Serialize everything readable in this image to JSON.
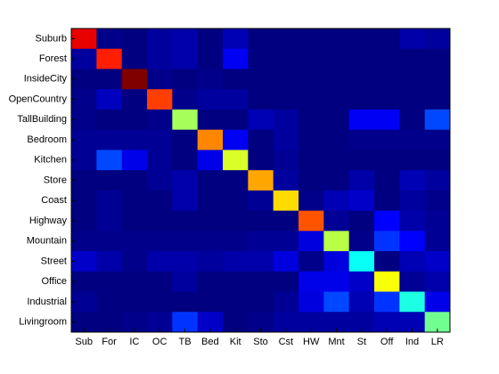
{
  "chart_data": {
    "type": "heatmap",
    "colormap": "jet",
    "x_categories": [
      "Sub",
      "For",
      "IC",
      "OC",
      "TB",
      "Bed",
      "Kit",
      "Sto",
      "Cst",
      "HW",
      "Mnt",
      "St",
      "Off",
      "Ind",
      "LR"
    ],
    "y_categories": [
      "Suburb",
      "Forest",
      "InsideCity",
      "OpenCountry",
      "TallBuilding",
      "Bedroom",
      "Kitchen",
      "Store",
      "Coast",
      "Highway",
      "Mountain",
      "Street",
      "Office",
      "Industrial",
      "Livingroom"
    ],
    "values": [
      [
        0.9,
        0.04,
        0.03,
        0.06,
        0.07,
        0.03,
        0.08,
        0.03,
        0.03,
        0.03,
        0.03,
        0.03,
        0.03,
        0.07,
        0.06
      ],
      [
        0.06,
        0.85,
        0.03,
        0.06,
        0.07,
        0.03,
        0.14,
        0.03,
        0.03,
        0.03,
        0.03,
        0.03,
        0.03,
        0.03,
        0.03
      ],
      [
        0.03,
        0.03,
        1.0,
        0.04,
        0.03,
        0.04,
        0.03,
        0.03,
        0.03,
        0.03,
        0.03,
        0.03,
        0.03,
        0.03,
        0.03
      ],
      [
        0.04,
        0.09,
        0.03,
        0.82,
        0.04,
        0.06,
        0.06,
        0.03,
        0.03,
        0.03,
        0.03,
        0.03,
        0.03,
        0.03,
        0.03
      ],
      [
        0.04,
        0.03,
        0.03,
        0.04,
        0.55,
        0.03,
        0.03,
        0.08,
        0.06,
        0.03,
        0.03,
        0.14,
        0.14,
        0.03,
        0.22
      ],
      [
        0.05,
        0.05,
        0.05,
        0.05,
        0.03,
        0.75,
        0.14,
        0.03,
        0.06,
        0.03,
        0.03,
        0.04,
        0.04,
        0.04,
        0.04
      ],
      [
        0.05,
        0.22,
        0.13,
        0.05,
        0.03,
        0.13,
        0.6,
        0.03,
        0.05,
        0.03,
        0.03,
        0.03,
        0.03,
        0.03,
        0.03
      ],
      [
        0.03,
        0.03,
        0.03,
        0.05,
        0.07,
        0.03,
        0.03,
        0.72,
        0.06,
        0.03,
        0.03,
        0.07,
        0.03,
        0.08,
        0.06
      ],
      [
        0.03,
        0.05,
        0.03,
        0.03,
        0.07,
        0.03,
        0.03,
        0.05,
        0.67,
        0.04,
        0.08,
        0.1,
        0.03,
        0.06,
        0.04
      ],
      [
        0.03,
        0.05,
        0.03,
        0.03,
        0.03,
        0.03,
        0.03,
        0.03,
        0.03,
        0.8,
        0.05,
        0.03,
        0.15,
        0.07,
        0.05
      ],
      [
        0.04,
        0.04,
        0.04,
        0.04,
        0.04,
        0.04,
        0.04,
        0.05,
        0.05,
        0.12,
        0.57,
        0.04,
        0.2,
        0.15,
        0.05
      ],
      [
        0.1,
        0.07,
        0.04,
        0.07,
        0.07,
        0.06,
        0.07,
        0.07,
        0.12,
        0.04,
        0.12,
        0.4,
        0.03,
        0.08,
        0.1
      ],
      [
        0.03,
        0.03,
        0.03,
        0.03,
        0.06,
        0.03,
        0.03,
        0.03,
        0.03,
        0.13,
        0.13,
        0.1,
        0.63,
        0.05,
        0.07
      ],
      [
        0.05,
        0.03,
        0.03,
        0.03,
        0.03,
        0.03,
        0.03,
        0.03,
        0.05,
        0.12,
        0.22,
        0.08,
        0.2,
        0.42,
        0.13
      ],
      [
        0.03,
        0.03,
        0.04,
        0.05,
        0.2,
        0.1,
        0.03,
        0.04,
        0.06,
        0.06,
        0.06,
        0.06,
        0.08,
        0.08,
        0.5
      ]
    ]
  }
}
